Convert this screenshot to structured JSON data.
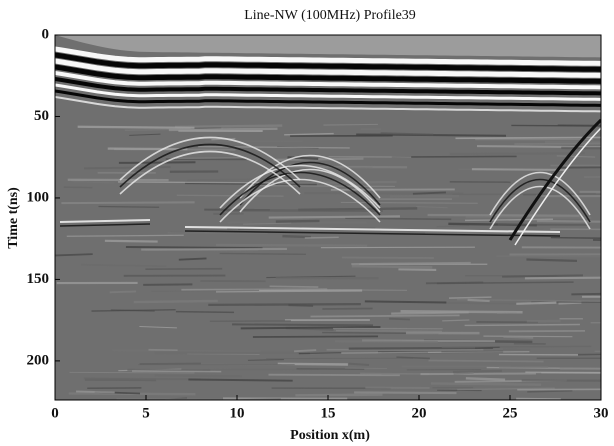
{
  "chart_data": {
    "type": "radargram",
    "title": "Line-NW (100MHz) Profile39",
    "x_label": "Position x(m)",
    "y_label": "Time t(ns)",
    "xlim": [
      0,
      30
    ],
    "xticks": [
      0,
      5,
      10,
      15,
      20,
      25,
      30
    ],
    "ylim": [
      0,
      224
    ],
    "yticks": [
      0,
      50,
      100,
      150,
      200
    ],
    "y_inverted": true
  }
}
